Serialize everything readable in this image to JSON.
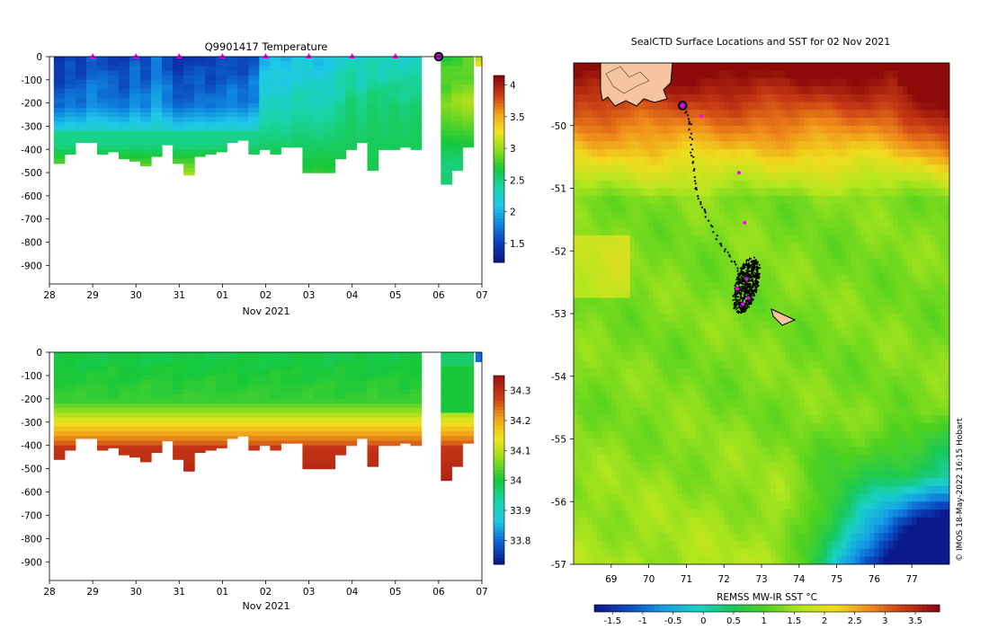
{
  "colors": {
    "temp_stops": [
      "#0a1a8c",
      "#0a3fb8",
      "#0f86e0",
      "#20c8e8",
      "#19d4a8",
      "#18c83a",
      "#8cdc1e",
      "#f0e61e",
      "#f0a019",
      "#c83c14",
      "#8c0a0a"
    ],
    "sal_stops": [
      "#0a1a8c",
      "#0f60d0",
      "#20c8e8",
      "#19d4a8",
      "#18c83a",
      "#8cdc1e",
      "#f0e61e",
      "#f0a019",
      "#c83c14",
      "#a01414"
    ],
    "sst_stops": [
      "#0a1a8c",
      "#0a50c8",
      "#14a0e6",
      "#19d0c8",
      "#18c858",
      "#50d21e",
      "#b4e61e",
      "#f0dc1e",
      "#f08c19",
      "#c83c14",
      "#8c0a0a"
    ],
    "marker": "#ff00ff",
    "land": "#f7c4a0"
  },
  "chart_data": [
    {
      "type": "heatmap",
      "name": "temperature-section",
      "title": "Q9901417  Temperature",
      "xlabel": "Nov 2021",
      "x_ticks": [
        "28",
        "29",
        "30",
        "31",
        "01",
        "02",
        "03",
        "04",
        "05",
        "06",
        "07"
      ],
      "y_ticks": [
        "0",
        "-100",
        "-200",
        "-300",
        "-400",
        "-500",
        "-600",
        "-700",
        "-800",
        "-900"
      ],
      "xlim": [
        0,
        10
      ],
      "ylim": [
        -980,
        0
      ],
      "colorbar": {
        "ticks": [
          "4",
          "3.5",
          "3",
          "2.5",
          "2",
          "1.5"
        ],
        "tick_values": [
          4,
          3.5,
          3,
          2.5,
          2,
          1.5
        ],
        "range": [
          1.2,
          4.15
        ]
      },
      "profile_days": [
        0.1,
        0.35,
        0.6,
        0.85,
        1.1,
        1.35,
        1.6,
        1.85,
        2.1,
        2.35,
        2.6,
        2.85,
        3.1,
        3.35,
        3.6,
        3.85,
        4.1,
        4.35,
        4.6,
        4.85,
        5.1,
        5.35,
        5.6,
        5.85,
        6.1,
        6.35,
        6.6,
        6.85,
        7.1,
        7.35,
        7.6,
        7.85,
        8.1,
        8.35,
        9.05,
        9.3,
        9.55,
        9.85
      ],
      "profile_bottoms": [
        460,
        420,
        370,
        370,
        420,
        410,
        440,
        450,
        470,
        430,
        380,
        460,
        510,
        430,
        420,
        410,
        370,
        360,
        420,
        400,
        420,
        390,
        390,
        500,
        500,
        500,
        440,
        400,
        370,
        490,
        400,
        400,
        390,
        400,
        550,
        490,
        390,
        40
      ],
      "profile_surface_temp": [
        1.4,
        1.5,
        1.45,
        1.6,
        1.55,
        1.5,
        1.45,
        1.6,
        1.5,
        1.7,
        1.55,
        1.4,
        1.45,
        1.5,
        1.45,
        1.5,
        1.55,
        1.5,
        1.6,
        2.0,
        2.05,
        2.0,
        2.1,
        2.1,
        2.05,
        2.1,
        2.2,
        2.3,
        2.2,
        2.3,
        2.25,
        2.3,
        2.25,
        2.3,
        2.7,
        2.75,
        2.8,
        3.2
      ],
      "surface_markers": [
        1,
        2,
        3,
        4,
        5,
        6,
        7,
        8,
        9
      ],
      "current_position": 9
    },
    {
      "type": "heatmap",
      "name": "salinity-section",
      "xlabel": "Nov 2021",
      "x_ticks": [
        "28",
        "29",
        "30",
        "31",
        "01",
        "02",
        "03",
        "04",
        "05",
        "06",
        "07"
      ],
      "y_ticks": [
        "0",
        "-100",
        "-200",
        "-300",
        "-400",
        "-500",
        "-600",
        "-700",
        "-800",
        "-900"
      ],
      "xlim": [
        0,
        10
      ],
      "ylim": [
        -980,
        0
      ],
      "colorbar": {
        "ticks": [
          "34.3",
          "34.2",
          "34.1",
          "34",
          "33.9",
          "33.8"
        ],
        "tick_values": [
          34.3,
          34.2,
          34.1,
          34,
          33.9,
          33.8
        ],
        "range": [
          33.72,
          34.35
        ]
      }
    },
    {
      "type": "heatmap",
      "name": "sst-map",
      "title": "SealCTD Surface Locations and SST for 02 Nov 2021",
      "xlim": [
        68.0,
        78.0
      ],
      "ylim": [
        -57.0,
        -49.0
      ],
      "x_ticks": [
        "69",
        "70",
        "71",
        "72",
        "73",
        "74",
        "75",
        "76",
        "77"
      ],
      "x_tick_values": [
        69,
        70,
        71,
        72,
        73,
        74,
        75,
        76,
        77
      ],
      "y_ticks": [
        "-50",
        "-51",
        "-52",
        "-53",
        "-54",
        "-55",
        "-56",
        "-57"
      ],
      "y_tick_values": [
        -50,
        -51,
        -52,
        -53,
        -54,
        -55,
        -56,
        -57
      ],
      "colorbar": {
        "label": "REMSS MW-IR SST °C",
        "ticks": [
          "-1.5",
          "-1",
          "-0.5",
          "0",
          "0.5",
          "1",
          "1.5",
          "2",
          "2.5",
          "3",
          "3.5"
        ],
        "tick_values": [
          -1.5,
          -1,
          -0.5,
          0,
          0.5,
          1,
          1.5,
          2,
          2.5,
          3,
          3.5
        ],
        "range": [
          -1.8,
          3.9
        ]
      },
      "daily_positions": [
        [
          70.95,
          -49.68
        ],
        [
          71.4,
          -49.85
        ],
        [
          72.4,
          -50.75
        ],
        [
          72.55,
          -51.55
        ],
        [
          72.35,
          -52.6
        ],
        [
          72.6,
          -52.45
        ],
        [
          72.65,
          -52.75
        ],
        [
          72.5,
          -52.85
        ]
      ],
      "current_position": [
        70.9,
        -49.68
      ],
      "credit": "© IMOS 18-May-2022 16:15 Hobart"
    }
  ]
}
